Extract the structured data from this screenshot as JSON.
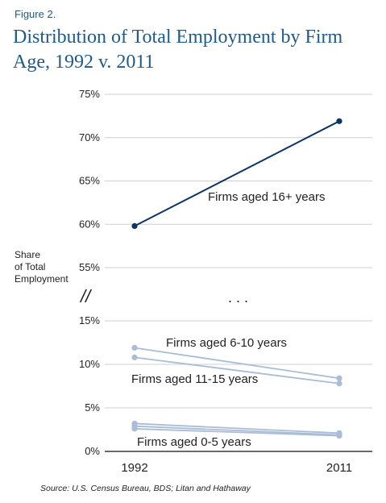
{
  "figure_label": "Figure 2.",
  "title_line1": "Distribution of Total Employment by Firm",
  "title_line2": "Age, 1992 v. 2011",
  "source": "Source: U.S. Census Bureau, BDS; Litan and Hathaway",
  "break_mark": "//",
  "ellipsis": ". . .",
  "colors": {
    "dark": "#0b3566",
    "light": "#a9bdd6",
    "grid": "#cfcfcf",
    "title": "#1f5a8a"
  },
  "chart_data": {
    "type": "line",
    "title": "Distribution of Total Employment by Firm Age, 1992 v. 2011",
    "xlabel": "",
    "ylabel": [
      "Share",
      "of Total",
      "Employment"
    ],
    "x": [
      "1992",
      "2011"
    ],
    "y_axis_broken": true,
    "upper_ticks": [
      "55%",
      "60%",
      "65%",
      "70%",
      "75%"
    ],
    "lower_ticks": [
      "0%",
      "5%",
      "10%",
      "15%"
    ],
    "ylim_upper": [
      55,
      75
    ],
    "ylim_lower": [
      0,
      15
    ],
    "grid": true,
    "series": [
      {
        "name": "Firms aged 16+ years",
        "values": [
          59.8,
          71.9
        ],
        "color": "dark",
        "segment": "upper"
      },
      {
        "name": "Firms aged 6-10 years",
        "values": [
          11.9,
          8.4
        ],
        "color": "light",
        "segment": "lower"
      },
      {
        "name": "Firms aged 11-15 years",
        "values": [
          10.8,
          7.8
        ],
        "color": "light",
        "segment": "lower"
      },
      {
        "name": "Firms aged 0-5 years",
        "values": [
          3.2,
          2.1
        ],
        "color": "light",
        "segment": "lower"
      },
      {
        "name": "",
        "values": [
          2.9,
          1.9
        ],
        "color": "light",
        "segment": "lower"
      },
      {
        "name": "",
        "values": [
          2.6,
          1.8
        ],
        "color": "light",
        "segment": "lower"
      }
    ]
  }
}
